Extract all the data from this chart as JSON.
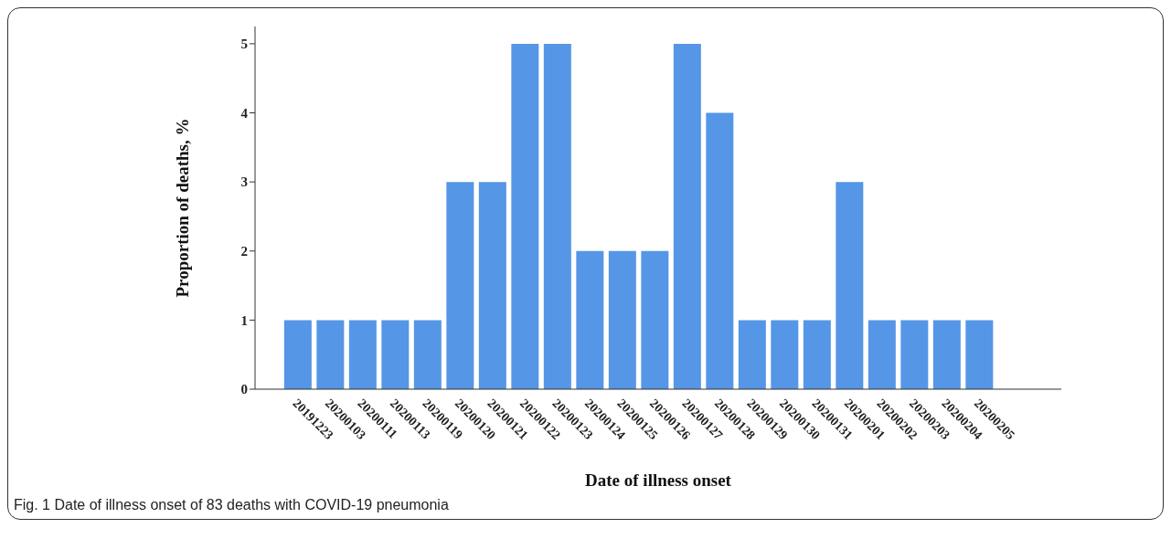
{
  "chart_data": {
    "type": "bar",
    "xlabel": "Date of illness onset",
    "ylabel": "Proportion of deaths, %",
    "categories": [
      "20191223",
      "20200103",
      "20200111",
      "20200113",
      "20200119",
      "20200120",
      "20200121",
      "20200122",
      "20200123",
      "20200124",
      "20200125",
      "20200126",
      "20200127",
      "20200128",
      "20200129",
      "20200130",
      "20200131",
      "20200201",
      "20200202",
      "20200203",
      "20200204",
      "20200205"
    ],
    "values": [
      1,
      1,
      1,
      1,
      1,
      3,
      3,
      5,
      5,
      2,
      2,
      2,
      5,
      4,
      1,
      1,
      1,
      3,
      1,
      1,
      1,
      1
    ],
    "color": "#5596e6",
    "ylim": [
      0,
      5.25
    ],
    "yticks": [
      0,
      1,
      2,
      3,
      4,
      5
    ],
    "grid": false,
    "legend": false,
    "annotations": [
      "Fig. 1 Date of illness onset of 83 deaths with COVID-19 pneumonia"
    ]
  }
}
